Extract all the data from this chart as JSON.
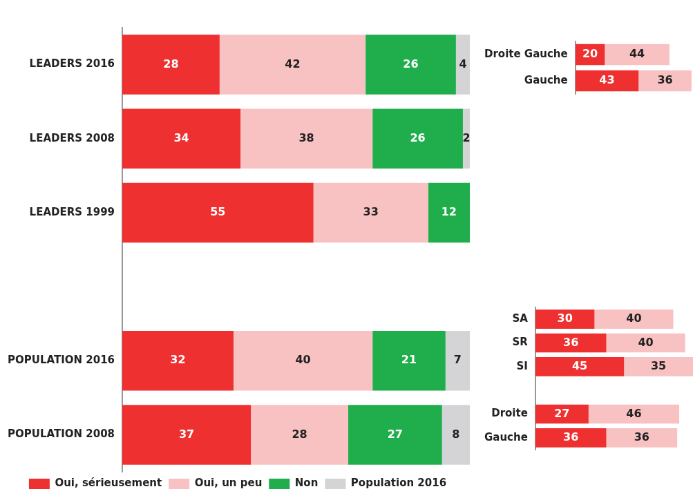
{
  "chart_data": [
    {
      "type": "bar",
      "orientation": "horizontal",
      "stacked": true,
      "categories": [
        "LEADERS 2016",
        "LEADERS 2008",
        "LEADERS 1999",
        null,
        "POPULATION 2016",
        "POPULATION 2008"
      ],
      "series": [
        {
          "name": "Oui, sérieusement",
          "color": "#ee3030",
          "values": [
            28,
            34,
            55,
            null,
            32,
            37
          ]
        },
        {
          "name": "Oui, un peu",
          "color": "#f8c2c2",
          "values": [
            42,
            38,
            33,
            null,
            40,
            28
          ]
        },
        {
          "name": "Non",
          "color": "#1fae4b",
          "values": [
            26,
            26,
            12,
            null,
            21,
            27
          ]
        },
        {
          "name": "Population 2016",
          "color": "#d4d4d6",
          "values": [
            4,
            2,
            null,
            null,
            7,
            8
          ]
        }
      ],
      "data_labels": true,
      "tick_labels": "y",
      "grid": false,
      "legend": "bottom"
    },
    {
      "type": "bar",
      "orientation": "horizontal",
      "stacked": true,
      "categories": [
        "Droite Gauche",
        "Gauche"
      ],
      "series": [
        {
          "color": "#ee3030",
          "values": [
            20,
            43
          ]
        },
        {
          "color": "#f8c2c2",
          "values": [
            44,
            36
          ]
        }
      ],
      "data_labels": true,
      "tick_labels": "y",
      "grid": false
    },
    {
      "type": "bar",
      "orientation": "horizontal",
      "stacked": true,
      "categories": [
        "SA",
        "SR",
        "SI",
        null,
        "Droite",
        "Gauche"
      ],
      "series": [
        {
          "color": "#ee3030",
          "values": [
            30,
            36,
            45,
            null,
            27,
            36
          ]
        },
        {
          "color": "#f8c2c2",
          "values": [
            40,
            40,
            35,
            null,
            46,
            36
          ]
        }
      ],
      "data_labels": true,
      "tick_labels": "y",
      "grid": false
    }
  ]
}
